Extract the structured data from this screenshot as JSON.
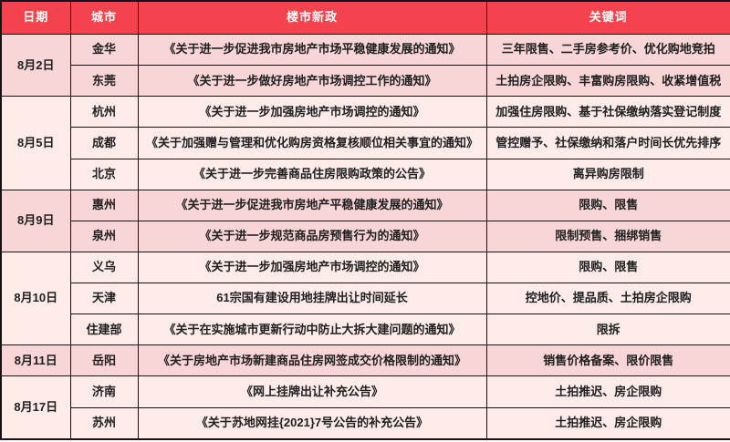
{
  "colors": {
    "header_bg": "#f4434e",
    "header_text": "#ffffff",
    "row_dark_pink": "#f8d5d6",
    "row_light_pink": "#fcebe9",
    "border": "#141414",
    "body_text": "#202020"
  },
  "table": {
    "headers": [
      "日期",
      "城市",
      "楼市新政",
      "关键词"
    ],
    "groups": [
      {
        "date": "8月2日",
        "rows": [
          {
            "city": "金华",
            "policy": "《关于进一步促进我市房地产市场平稳健康发展的通知》",
            "keywords": "三年限售、二手房参考价、优化购地竞拍"
          },
          {
            "city": "东莞",
            "policy": "《关于进一步做好房地产市场调控工作的通知》",
            "keywords": "土拍房企限购、丰富购房限购、收紧增值税"
          }
        ]
      },
      {
        "date": "8月5日",
        "rows": [
          {
            "city": "杭州",
            "policy": "《关于进一步加强房地产市场调控的通知》",
            "keywords": "加强住房限购、基于社保缴纳落实登记制度"
          },
          {
            "city": "成都",
            "policy": "《关于加强赠与管理和优化购房资格复核顺位相关事宜的通知》",
            "keywords": "管控赠予、社保缴纳和落户时间长优先排序"
          },
          {
            "city": "北京",
            "policy": "《关于进一步完善商品住房限购政策的公告》",
            "keywords": "离异购房限制"
          }
        ]
      },
      {
        "date": "8月9日",
        "rows": [
          {
            "city": "惠州",
            "policy": "《关于进一步促进我市房地产平稳健康发展的通知》",
            "keywords": "限购、限售"
          },
          {
            "city": "泉州",
            "policy": "《关于进一步规范商品房预售行为的通知》",
            "keywords": "限制预售、捆绑销售"
          }
        ]
      },
      {
        "date": "8月10日",
        "rows": [
          {
            "city": "义乌",
            "policy": "《关于进一步加强房地产市场调控的通知》",
            "keywords": "限购、限售"
          },
          {
            "city": "天津",
            "policy": "61宗国有建设用地挂牌出让时间延长",
            "keywords": "控地价、提品质、土拍房企限购"
          },
          {
            "city": "住建部",
            "policy": "《关于在实施城市更新行动中防止大拆大建问题的通知》",
            "keywords": "限拆"
          }
        ]
      },
      {
        "date": "8月11日",
        "rows": [
          {
            "city": "岳阳",
            "policy": "《关于房地产市场新建商品住房网签成交价格限制的通知》",
            "keywords": "销售价格备案、限价限售"
          }
        ]
      },
      {
        "date": "8月17日",
        "rows": [
          {
            "city": "济南",
            "policy": "《网上挂牌出让补充公告》",
            "keywords": "土拍推迟、房企限购"
          },
          {
            "city": "苏州",
            "policy": "《关于苏地网挂{2021}7号公告的补充公告》",
            "keywords": "土拍推迟、房企限购"
          }
        ]
      }
    ]
  }
}
